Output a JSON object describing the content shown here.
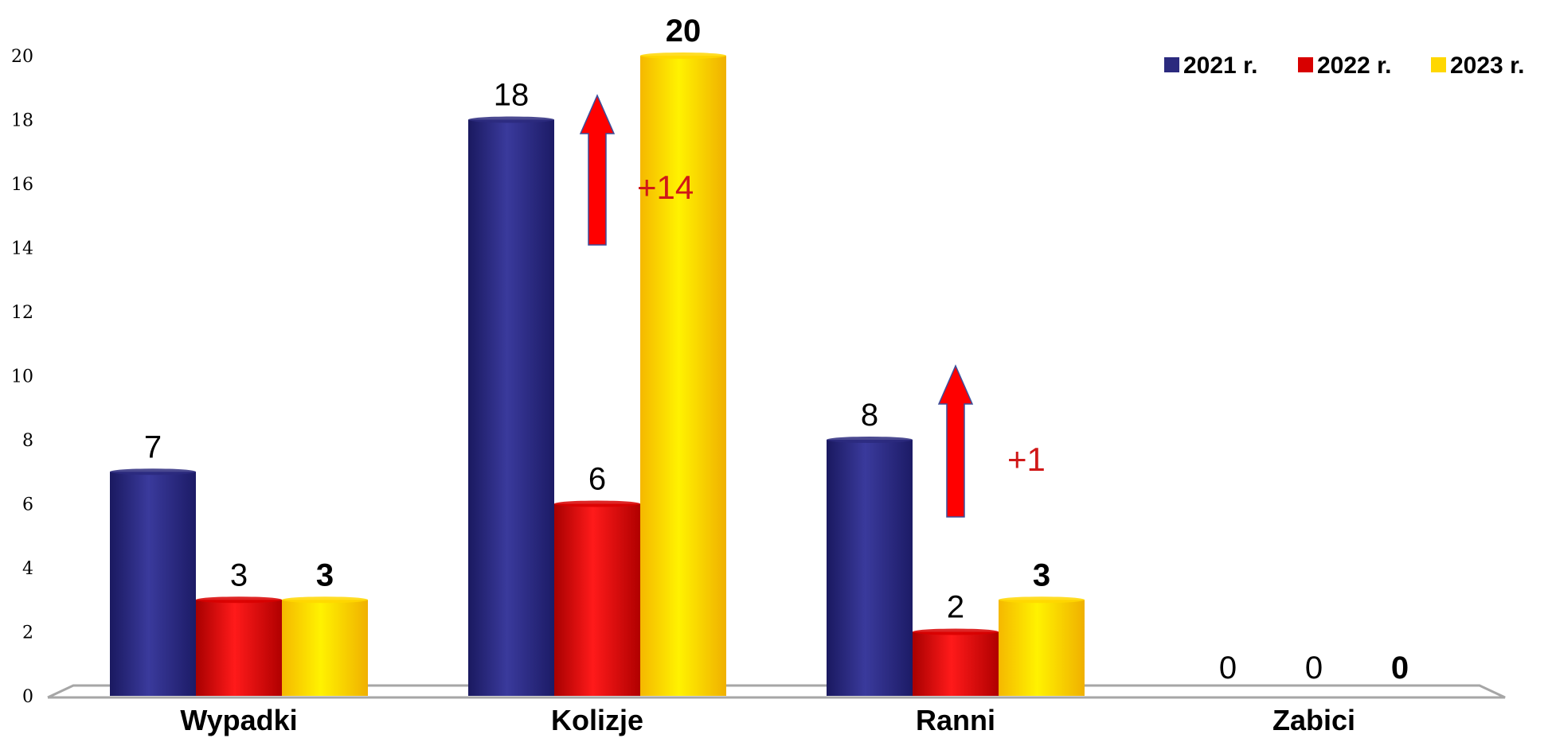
{
  "chart_data": {
    "type": "bar",
    "categories": [
      "Wypadki",
      "Kolizje",
      "Ranni",
      "Zabici"
    ],
    "series": [
      {
        "name": "2021 r.",
        "values": [
          7,
          18,
          8,
          0
        ],
        "color": "#2b2a7e"
      },
      {
        "name": "2022 r.",
        "values": [
          3,
          6,
          2,
          0
        ],
        "color": "#d80000"
      },
      {
        "name": "2023 r.",
        "values": [
          3,
          20,
          3,
          0
        ],
        "color": "#ffd700"
      }
    ],
    "ylim": [
      0,
      20
    ],
    "yticks": [
      0,
      2,
      4,
      6,
      8,
      10,
      12,
      14,
      16,
      18,
      20
    ],
    "legend": "top-right",
    "bold_series_index": 2,
    "annotations": [
      {
        "category": "Kolizje",
        "text": "+14",
        "color": "#d01818"
      },
      {
        "category": "Ranni",
        "text": "+1",
        "color": "#d01818"
      }
    ]
  }
}
